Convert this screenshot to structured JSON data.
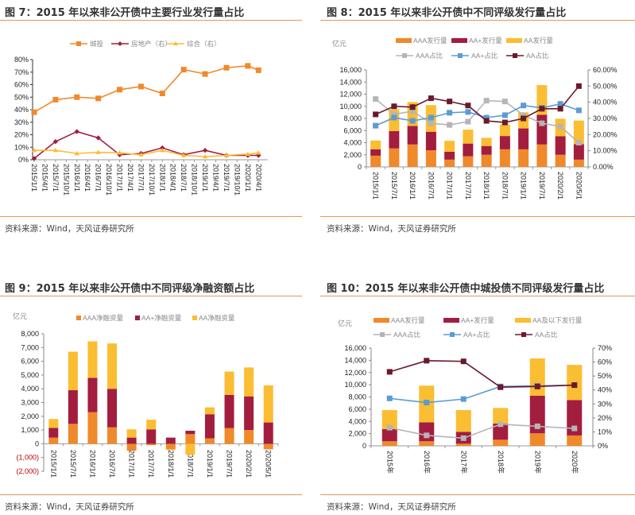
{
  "panels": [
    {
      "title": "图 7：2015 年以来非公开债中主要行业发行量占比",
      "source": "资料来源：Wind，天风证券研究所"
    },
    {
      "title": "图 8：2015 年以来非公开债中不同评级发行量占比",
      "source": "资料来源：Wind，天风证券研究所"
    },
    {
      "title": "图 9：2015 年以来非公开债中不同评级净融资额占比",
      "source": "资料来源：Wind，天风证券研究所"
    },
    {
      "title": "图 10：2015 年以来非公开债中城投债不同评级发行量占比",
      "source": "资料来源：Wind，天风证券研究所"
    }
  ],
  "colors": {
    "orange": "#f0892a",
    "maroon": "#a31d3f",
    "yellow": "#fbbd31",
    "gray": "#b5b5b5",
    "blue": "#5b9bd5",
    "darkred": "#6a1a2c",
    "rule": "#e09a52",
    "negative": "#c00000"
  },
  "chart_data": [
    {
      "id": "fig7",
      "type": "line",
      "title": "图 7：2015 年以来非公开债中主要行业发行量占比",
      "xlabel": "",
      "ylabel": "",
      "ylim": [
        0,
        80
      ],
      "yticks": [
        "0%",
        "10%",
        "20%",
        "30%",
        "40%",
        "50%",
        "60%",
        "70%",
        "80%"
      ],
      "x_tick_labels": [
        "2015/1/1",
        "2015/4/1",
        "2015/7/1",
        "2015/10/1",
        "2016/1/1",
        "2016/4/1",
        "2016/7/1",
        "2016/10/1",
        "2017/1/1",
        "2017/4/1",
        "2017/7/1",
        "2017/10/1",
        "2018/1/1",
        "2018/4/1",
        "2018/7/1",
        "2018/10/1",
        "2019/1/1",
        "2019/4/1",
        "2019/7/1",
        "2019/10/1",
        "2020/1/1",
        "2020/4/1"
      ],
      "x_index": [
        0,
        2,
        4,
        6,
        8,
        10,
        12,
        14,
        16,
        18,
        20,
        21
      ],
      "legend": [
        "城投",
        "房地产（右）",
        "综合（右）"
      ],
      "legend_position": "top",
      "series": [
        {
          "name": "城投",
          "marker": "square",
          "values": [
            38,
            48,
            50,
            49,
            56,
            58.5,
            53,
            72,
            68.5,
            73.5,
            75,
            71.5
          ]
        },
        {
          "name": "房地产（右）",
          "marker": "diamond",
          "values": [
            1,
            14.5,
            22.5,
            17.5,
            4,
            5,
            9.5,
            4,
            7.5,
            3.5,
            3.5,
            3.5
          ]
        },
        {
          "name": "综合（右）",
          "marker": "triangle",
          "values": [
            7.5,
            7.5,
            5,
            6,
            5.5,
            4,
            7.5,
            3.5,
            2.5,
            3.5,
            4.5,
            5.5
          ]
        }
      ]
    },
    {
      "id": "fig8",
      "type": "bar",
      "title": "图 8：2015 年以来非公开债中不同评级发行量占比",
      "ylabel": "亿元",
      "ylim": [
        0,
        16000
      ],
      "yticks": [
        "0",
        "2,000",
        "4,000",
        "6,000",
        "8,000",
        "10,000",
        "12,000",
        "14,000",
        "16,000"
      ],
      "y2lim": [
        0,
        60
      ],
      "y2ticks": [
        "0.00%",
        "10.00%",
        "20.00%",
        "30.00%",
        "40.00%",
        "50.00%",
        "60.00%"
      ],
      "categories": [
        "2015/1/1",
        "2015/7/1",
        "2016/1/1",
        "2016/7/1",
        "2017/1/1",
        "2017/7/1",
        "2018/1/1",
        "2018/7/1",
        "2019/1/1",
        "2019/7/1",
        "2020/2/1",
        "2020/5/1"
      ],
      "legend": [
        "AAA发行量",
        "AA+发行量",
        "AA发行量",
        "AAA占比",
        "AA+占比",
        "AA占比"
      ],
      "legend_position": "top",
      "series": [
        {
          "name": "AAA发行量",
          "kind": "bar",
          "values": [
            1850,
            3050,
            3700,
            2750,
            1200,
            1750,
            2000,
            2900,
            2900,
            3700,
            2000,
            1200
          ]
        },
        {
          "name": "AA+发行量",
          "kind": "bar",
          "values": [
            1050,
            2850,
            3050,
            3050,
            1300,
            2100,
            1450,
            2200,
            3450,
            4900,
            3050,
            2550
          ]
        },
        {
          "name": "AA发行量",
          "kind": "bar",
          "values": [
            1450,
            3600,
            3950,
            4400,
            1800,
            2300,
            1350,
            1900,
            2650,
            4900,
            2900,
            3900
          ]
        },
        {
          "name": "AAA占比",
          "kind": "line",
          "axis": "right",
          "values": [
            42,
            32.5,
            34.5,
            27,
            26,
            28,
            41,
            40.5,
            32,
            27,
            25,
            15
          ]
        },
        {
          "name": "AA+占比",
          "kind": "line",
          "axis": "right",
          "values": [
            25.5,
            30.5,
            28.5,
            30.5,
            33.5,
            34,
            30.5,
            32,
            38,
            36.5,
            39,
            35
          ]
        },
        {
          "name": "AA占比",
          "kind": "line",
          "axis": "right",
          "values": [
            32.5,
            37.5,
            37,
            42.5,
            40.5,
            38,
            28.5,
            27.5,
            30,
            36,
            36,
            50
          ]
        }
      ]
    },
    {
      "id": "fig9",
      "type": "bar",
      "title": "图 9：2015 年以来非公开债中不同评级净融资额占比",
      "ylabel": "亿元",
      "ylim": [
        -2000,
        8000
      ],
      "yticks": [
        "(2,000)",
        "(1,000)",
        "0",
        "1,000",
        "2,000",
        "3,000",
        "4,000",
        "5,000",
        "6,000",
        "7,000",
        "8,000"
      ],
      "categories": [
        "2015/1/1",
        "2015/7/1",
        "2016/1/1",
        "2016/7/1",
        "2017/1/1",
        "2017/7/1",
        "2018/1/1",
        "2018/7/1",
        "2019/1/1",
        "2019/7/1",
        "2020/2/1",
        "2020/5/1"
      ],
      "legend": [
        "AAA净融资量",
        "AA+净融资量",
        "AA净融资量"
      ],
      "legend_position": "top",
      "series": [
        {
          "name": "AAA净融资量",
          "values": [
            450,
            1450,
            2300,
            1200,
            -500,
            -100,
            -400,
            700,
            400,
            1150,
            1000,
            -400
          ]
        },
        {
          "name": "AA+净融资量",
          "values": [
            700,
            2450,
            2500,
            2800,
            450,
            1050,
            450,
            250,
            1750,
            2400,
            2450,
            1550
          ]
        },
        {
          "name": "AA净融资量",
          "values": [
            650,
            2800,
            2650,
            3300,
            600,
            700,
            -50,
            -800,
            500,
            1700,
            2100,
            2700
          ]
        }
      ]
    },
    {
      "id": "fig10",
      "type": "bar",
      "title": "图 10：2015 年以来非公开债中城投债不同评级发行量占比",
      "ylabel": "亿元",
      "ylim": [
        0,
        16000
      ],
      "yticks": [
        "0",
        "2,000",
        "4,000",
        "6,000",
        "8,000",
        "10,000",
        "12,000",
        "14,000",
        "16,000"
      ],
      "y2lim": [
        0,
        70
      ],
      "y2ticks": [
        "0%",
        "10%",
        "20%",
        "30%",
        "40%",
        "50%",
        "60%",
        "70%"
      ],
      "categories": [
        "2015年",
        "2016年",
        "2017年",
        "2018年",
        "2019年",
        "2020年"
      ],
      "legend": [
        "AAA发行量",
        "AA+发行量",
        "AA及以下发行量",
        "AAA占比",
        "AA+占比",
        "AA占比"
      ],
      "legend_position": "top",
      "series": [
        {
          "name": "AAA发行量",
          "kind": "bar",
          "values": [
            750,
            750,
            350,
            1000,
            2050,
            1700
          ]
        },
        {
          "name": "AA+发行量",
          "kind": "bar",
          "values": [
            2000,
            3100,
            1950,
            2650,
            6150,
            5800
          ]
        },
        {
          "name": "AA及以下发行量",
          "kind": "bar",
          "values": [
            3100,
            6000,
            3550,
            2550,
            6100,
            5750
          ]
        },
        {
          "name": "AAA占比",
          "kind": "line",
          "axis": "right",
          "values": [
            13,
            7.5,
            5.5,
            15.5,
            14,
            12.5
          ]
        },
        {
          "name": "AA+占比",
          "kind": "line",
          "axis": "right",
          "values": [
            34,
            31,
            33.5,
            42.5,
            43,
            43.5
          ]
        },
        {
          "name": "AA占比",
          "kind": "line",
          "axis": "right",
          "values": [
            53,
            61,
            60.5,
            42,
            42.5,
            43.5
          ]
        }
      ]
    }
  ]
}
